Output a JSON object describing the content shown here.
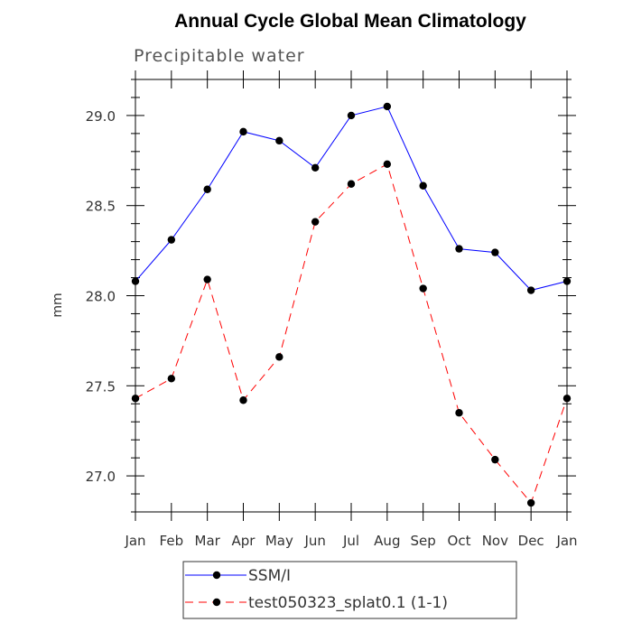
{
  "chart_data": {
    "type": "line",
    "title": "Annual Cycle Global Mean Climatology",
    "subtitle": "Precipitable water",
    "xlabel": "",
    "ylabel": "mm",
    "categories": [
      "Jan",
      "Feb",
      "Mar",
      "Apr",
      "May",
      "Jun",
      "Jul",
      "Aug",
      "Sep",
      "Oct",
      "Nov",
      "Dec",
      "Jan"
    ],
    "ylim": [
      26.8,
      29.2
    ],
    "yticks_major": [
      "27.0",
      "27.5",
      "28.0",
      "28.5",
      "29.0"
    ],
    "grid": false,
    "legend_position": "bottom",
    "series": [
      {
        "name": "SSM/I",
        "color": "#0000ff",
        "dash": "solid",
        "marker": "filled-circle",
        "values": [
          28.08,
          28.31,
          28.59,
          28.91,
          28.86,
          28.71,
          29.0,
          29.05,
          28.61,
          28.26,
          28.24,
          28.03,
          28.08
        ]
      },
      {
        "name": "test050323_splat0.1 (1-1)",
        "color": "#ff0000",
        "dash": "dashed",
        "marker": "filled-circle",
        "values": [
          27.43,
          27.54,
          28.09,
          27.42,
          27.66,
          28.41,
          28.62,
          28.73,
          28.04,
          27.35,
          27.09,
          26.85,
          27.43
        ]
      }
    ]
  }
}
